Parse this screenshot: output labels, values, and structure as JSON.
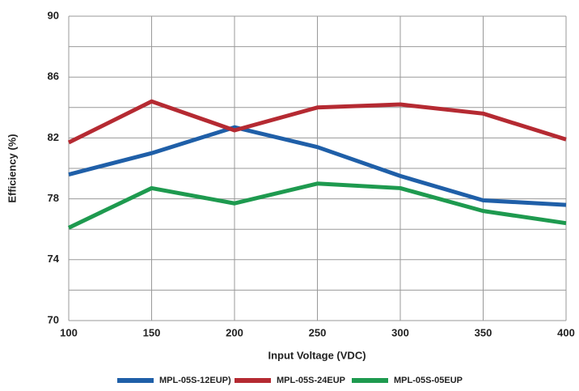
{
  "chart_data": {
    "type": "line",
    "x_label": "Input Voltage (VDC)",
    "y_label": "Efficiency (%)",
    "x": [
      100,
      150,
      200,
      250,
      300,
      350,
      400
    ],
    "series": [
      {
        "name": "MPL-05S-12EUP)",
        "color": "#1f5fa8",
        "values": [
          79.6,
          81.0,
          82.7,
          81.4,
          79.5,
          77.9,
          77.6
        ]
      },
      {
        "name": "MPL-05S-24EUP",
        "color": "#b52a32",
        "values": [
          81.7,
          84.4,
          82.5,
          84.0,
          84.2,
          83.6,
          81.9
        ]
      },
      {
        "name": "MPL-05S-05EUP",
        "color": "#1e9a4f",
        "values": [
          76.1,
          78.7,
          77.7,
          79.0,
          78.7,
          77.2,
          76.4
        ]
      }
    ],
    "xlim": [
      100,
      400
    ],
    "xticks": [
      100,
      150,
      200,
      250,
      300,
      350,
      400
    ],
    "ylim": [
      70,
      90
    ],
    "yticks": [
      70,
      74,
      78,
      82,
      86,
      90
    ],
    "ygrid": [
      70,
      72,
      74,
      76,
      78,
      80,
      82,
      84,
      86,
      88,
      90
    ],
    "grid": true,
    "legend": "bottom"
  }
}
